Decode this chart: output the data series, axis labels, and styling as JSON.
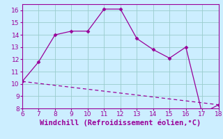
{
  "xlabel": "Windchill (Refroidissement éolien,°C)",
  "line1_x": [
    6,
    7,
    8,
    9,
    10,
    11,
    12,
    13,
    14,
    15,
    16,
    17,
    18
  ],
  "line1_y": [
    10.2,
    11.8,
    14.0,
    14.3,
    14.3,
    16.1,
    16.1,
    13.7,
    12.8,
    12.1,
    13.0,
    7.6,
    8.3
  ],
  "line2_x": [
    6,
    18
  ],
  "line2_y": [
    10.2,
    8.3
  ],
  "line_color": "#990099",
  "marker": "D",
  "marker_size": 2.5,
  "xlim": [
    6,
    18
  ],
  "ylim": [
    8,
    16.5
  ],
  "xticks": [
    6,
    7,
    8,
    9,
    10,
    11,
    12,
    13,
    14,
    15,
    16,
    17,
    18
  ],
  "yticks": [
    8,
    9,
    10,
    11,
    12,
    13,
    14,
    15,
    16
  ],
  "bg_color": "#cceeff",
  "grid_color": "#99cccc",
  "xlabel_fontsize": 7.5,
  "tick_fontsize": 6.5
}
